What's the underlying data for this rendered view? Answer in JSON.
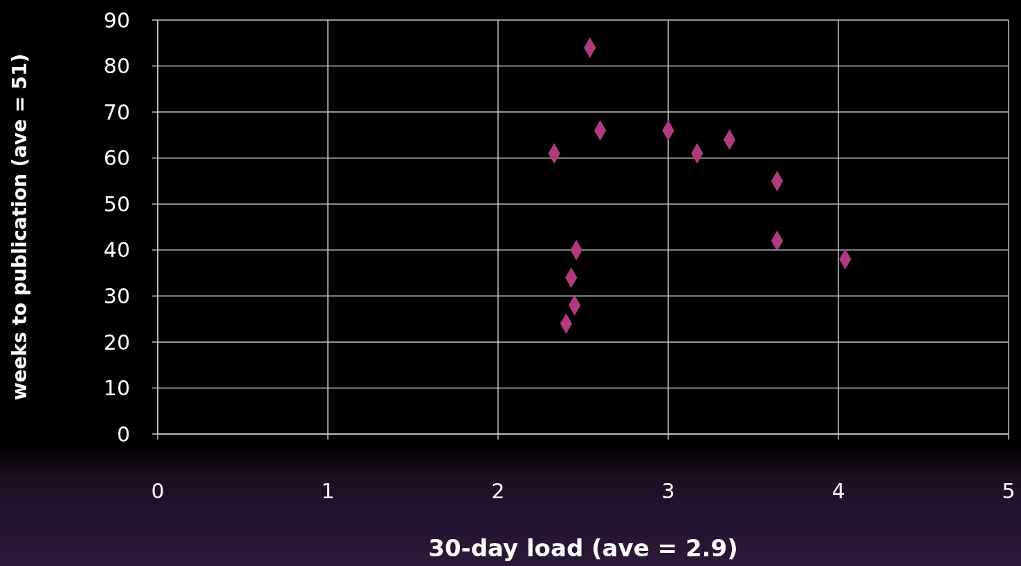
{
  "chart_data": {
    "type": "scatter",
    "xlabel": "30-day load (ave = 2.9)",
    "ylabel": "weeks to publication (ave = 51)",
    "x": [
      2.54,
      2.33,
      2.6,
      3.0,
      3.17,
      3.36,
      3.64,
      3.64,
      4.04,
      2.46,
      2.43,
      2.45,
      2.4
    ],
    "series": [
      {
        "color": "#b03a7e",
        "values": [
          84,
          61,
          66,
          66,
          61,
          64,
          55,
          42,
          38,
          40,
          34,
          28,
          24
        ]
      }
    ],
    "xlim": [
      0,
      5
    ],
    "xticks": [
      0,
      1,
      2,
      3,
      4,
      5
    ],
    "ylim": [
      0,
      90
    ],
    "yticks": [
      0,
      10,
      20,
      30,
      40,
      50,
      60,
      70,
      80,
      90
    ],
    "grid": true,
    "legend": false,
    "marker": "diamond"
  }
}
